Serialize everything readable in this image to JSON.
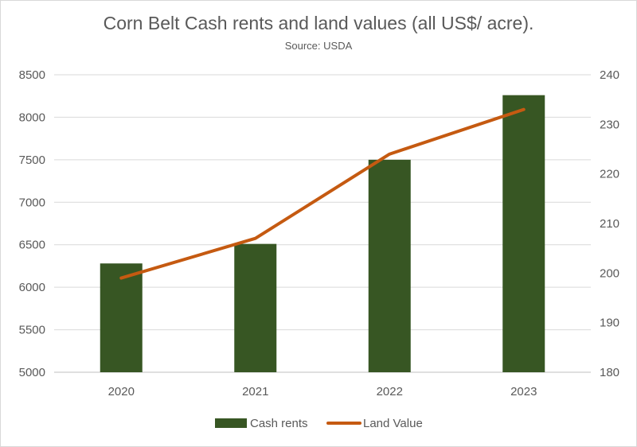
{
  "chart_data": {
    "type": "bar",
    "title": "Corn Belt Cash rents and land values (all US$/ acre).",
    "subtitle": "Source: USDA",
    "categories": [
      "2020",
      "2021",
      "2022",
      "2023"
    ],
    "y_left": {
      "min": 5000,
      "max": 8500,
      "step": 500,
      "ticks": [
        "5000",
        "5500",
        "6000",
        "6500",
        "7000",
        "7500",
        "8000",
        "8500"
      ]
    },
    "y_right": {
      "min": 180,
      "max": 240,
      "step": 10,
      "ticks": [
        "180",
        "190",
        "200",
        "210",
        "220",
        "230",
        "240"
      ]
    },
    "series": [
      {
        "name": "Cash rents",
        "type": "bar",
        "axis": "left",
        "color": "#375623",
        "values": [
          6280,
          6510,
          7500,
          8260
        ]
      },
      {
        "name": "Land Value",
        "type": "line",
        "axis": "right",
        "color": "#c55a11",
        "values": [
          199,
          207,
          224,
          233
        ]
      }
    ],
    "grid": true,
    "legend": "bottom"
  }
}
